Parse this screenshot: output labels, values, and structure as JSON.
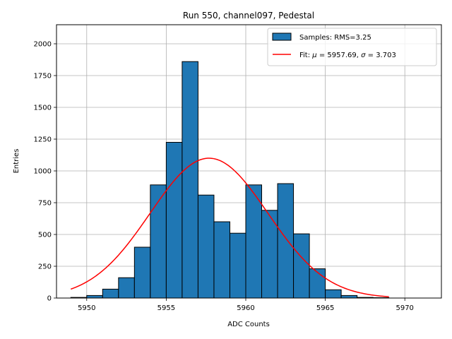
{
  "chart_data": {
    "type": "bar",
    "title": "Run 550, channel097, Pedestal",
    "xlabel": "ADC Counts",
    "ylabel": "Entries",
    "xlim": [
      5948.1,
      5972.3
    ],
    "ylim": [
      0,
      2150
    ],
    "xticks": [
      5950,
      5955,
      5960,
      5965,
      5970
    ],
    "yticks": [
      0,
      250,
      500,
      750,
      1000,
      1250,
      1500,
      1750,
      2000
    ],
    "grid": true,
    "legend_position": "top-right",
    "bar_color": "#1f77b4",
    "fit_color": "#ff0000",
    "series": [
      {
        "name": "Samples: RMS=3.25",
        "type": "histogram",
        "bin_edges": [
          5949,
          5950,
          5951,
          5952,
          5953,
          5954,
          5955,
          5956,
          5957,
          5958,
          5959,
          5960,
          5961,
          5962,
          5963,
          5964,
          5965,
          5966,
          5967,
          5968,
          5969,
          5970,
          5971
        ],
        "values": [
          5,
          20,
          70,
          160,
          400,
          890,
          1225,
          1860,
          810,
          600,
          510,
          890,
          690,
          900,
          505,
          230,
          65,
          20,
          5,
          3,
          0,
          0
        ]
      },
      {
        "name": "Fit: μ = 5957.69, σ = 3.703",
        "type": "gaussian",
        "mu": 5957.69,
        "sigma": 3.703,
        "amplitude": 1100,
        "x_range": [
          5949,
          5969
        ]
      }
    ],
    "legend": [
      {
        "label_prefix": "Samples: RMS=3.25",
        "kind": "patch"
      },
      {
        "label_prefix": "Fit: ",
        "mu_symbol": "μ",
        "mu_text": " = 5957.69, ",
        "sigma_symbol": "σ",
        "sigma_text": " = 3.703",
        "kind": "line"
      }
    ]
  }
}
